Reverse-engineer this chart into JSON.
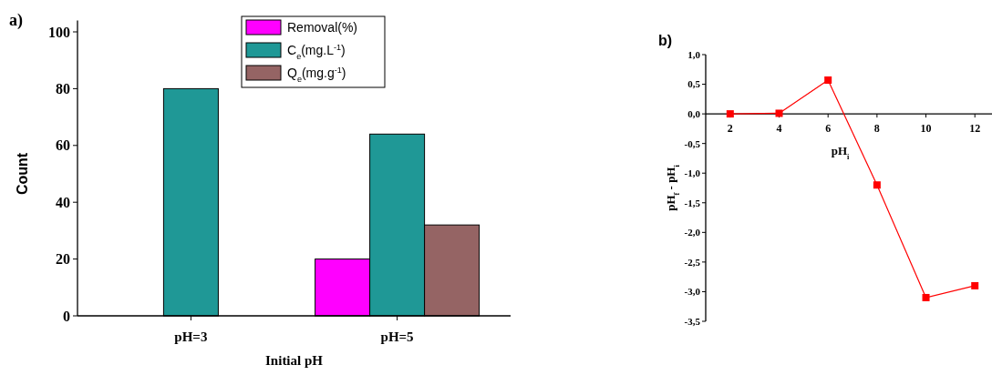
{
  "chart_data": [
    {
      "type": "bar",
      "title": "a)",
      "xlabel": "Initial pH",
      "ylabel": "Count",
      "categories": [
        "pH=3",
        "pH=5"
      ],
      "series": [
        {
          "name": "Removal(%)",
          "color": "#ff00ff",
          "values": [
            null,
            20
          ]
        },
        {
          "name": "C$_{e}$(mg.L$^{-1}$)",
          "color": "#1f9896",
          "values": [
            80,
            64
          ]
        },
        {
          "name": "Q$_{e}$(mg.g$^{-1}$)",
          "color": "#956464",
          "values": [
            null,
            32
          ]
        }
      ],
      "ylim": [
        0,
        104
      ],
      "yticks": [
        0,
        20,
        40,
        60,
        80,
        100
      ],
      "legend": "top",
      "grid": false
    },
    {
      "type": "line",
      "title": "b)",
      "xlabel": "pH$_{i}$",
      "ylabel": "pH$_{f}$ - pH$_{i}$",
      "x": [
        2,
        4,
        6,
        8,
        10,
        12
      ],
      "series": [
        {
          "color": "#ff0000",
          "values": [
            0,
            0.01,
            0.57,
            -1.2,
            -3.1,
            -2.9
          ]
        }
      ],
      "xlim": [
        1,
        12.7
      ],
      "xticks": [
        2,
        4,
        6,
        8,
        10,
        12
      ],
      "ylim": [
        -3.5,
        1.0
      ],
      "yticks": [
        {
          "value": 1.0,
          "label": "1,0"
        },
        {
          "value": 0.5,
          "label": "0,5"
        },
        {
          "value": 0,
          "label": "0,0"
        },
        {
          "value": -0.5,
          "label": "-0,5"
        },
        {
          "value": -1.0,
          "label": "-1,0"
        },
        {
          "value": -1.5,
          "label": "-1,5"
        },
        {
          "value": -2.0,
          "label": "-2,0"
        },
        {
          "value": -2.5,
          "label": "-2,5"
        },
        {
          "value": -3.0,
          "label": "-3,0"
        },
        {
          "value": -3.5,
          "label": "-3,5"
        }
      ],
      "marker": "square",
      "line_style": "solid",
      "grid": false
    }
  ]
}
